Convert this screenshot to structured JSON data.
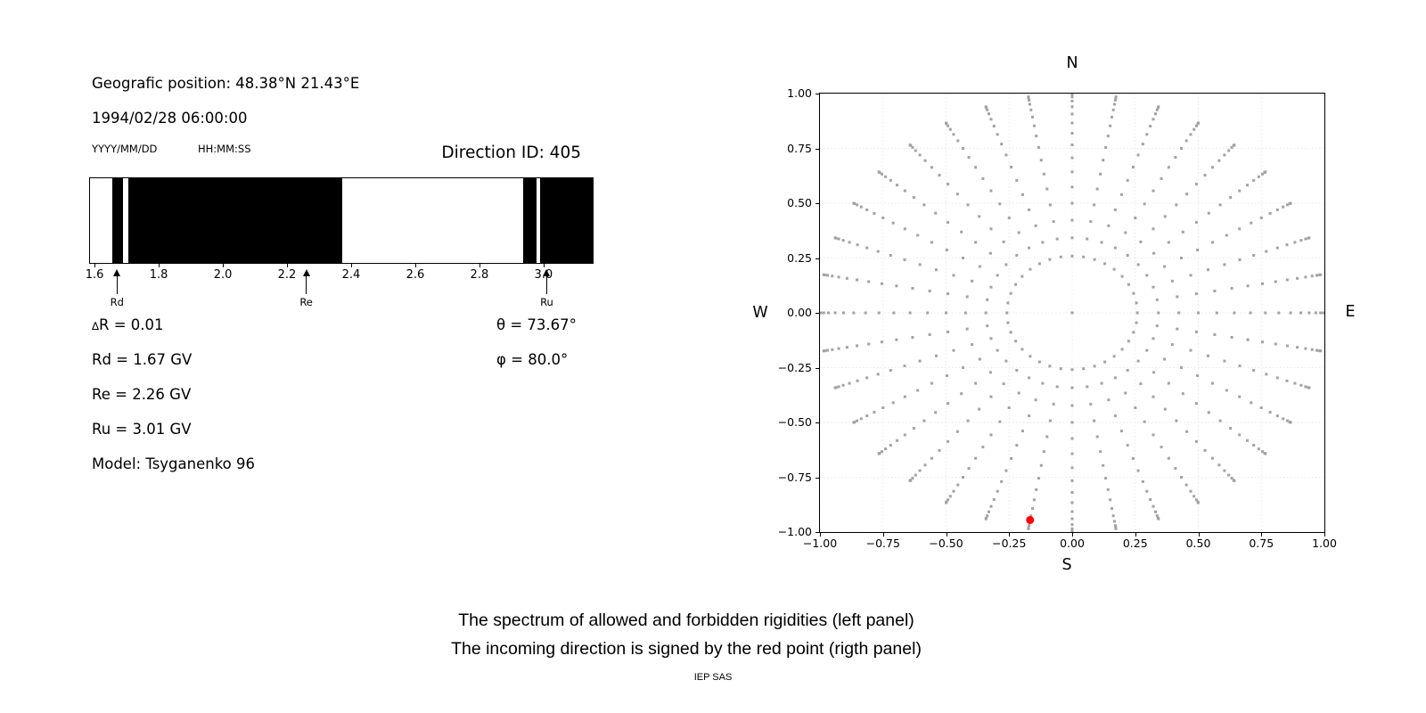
{
  "left_panel": {
    "position_line": "Geografic position: 48.38°N 21.43°E",
    "datetime_line": "1994/02/28 06:00:00",
    "date_format_label": "YYYY/MM/DD",
    "time_format_label": "HH:MM:SS",
    "direction_id_line": "Direction ID: 405",
    "delta_symbol": "∆",
    "delta_rest": "R = 0.01",
    "rd_line": "Rd = 1.67 GV",
    "re_line": "Re = 2.26 GV",
    "ru_line": "Ru = 3.01 GV",
    "model_line": "Model: Tsyganenko 96",
    "theta_line": "θ = 73.67°",
    "phi_line": "φ = 80.0°"
  },
  "chart_data": [
    {
      "type": "bar",
      "title": "",
      "xlabel": "",
      "ylabel": "",
      "description": "Spectrum of allowed (white) and forbidden (black) rigidity bands in GV",
      "xlim": [
        1.583,
        3.156
      ],
      "xticks": [
        1.6,
        1.8,
        2.0,
        2.2,
        2.4,
        2.6,
        2.8,
        3.0
      ],
      "xtick_labels": [
        "1.6",
        "1.8",
        "2.0",
        "2.2",
        "2.4",
        "2.6",
        "2.8",
        "3.0"
      ],
      "black_segments": [
        [
          1.652,
          1.686
        ],
        [
          1.702,
          2.372
        ],
        [
          2.939,
          2.981
        ],
        [
          2.992,
          3.156
        ]
      ],
      "white_segments": [
        [
          1.583,
          1.652
        ],
        [
          1.686,
          1.702
        ],
        [
          2.372,
          2.939
        ],
        [
          2.981,
          2.992
        ]
      ],
      "arrows": [
        {
          "label": "Rd",
          "value": 1.67
        },
        {
          "label": "Re",
          "value": 2.26
        },
        {
          "label": "Ru",
          "value": 3.01
        }
      ],
      "colors": {
        "band": "#000000",
        "background": "#ffffff"
      }
    },
    {
      "type": "scatter",
      "title": "",
      "compass": {
        "north": "N",
        "south": "S",
        "west": "W",
        "east": "E"
      },
      "xlim": [
        -1.0,
        1.0
      ],
      "ylim": [
        -1.0,
        1.0
      ],
      "xticks": [
        -1.0,
        -0.75,
        -0.5,
        -0.25,
        0.0,
        0.25,
        0.5,
        0.75,
        1.0
      ],
      "yticks": [
        1.0,
        0.75,
        0.5,
        0.25,
        0.0,
        -0.25,
        -0.5,
        -0.75,
        -1.0
      ],
      "xtick_labels": [
        "−1.00",
        "−0.75",
        "−0.50",
        "−0.25",
        "0.00",
        "0.25",
        "0.50",
        "0.75",
        "1.00"
      ],
      "ytick_labels": [
        "1.00",
        "0.75",
        "0.50",
        "0.25",
        "0.00",
        "−0.25",
        "−0.50",
        "−0.75",
        "−1.00"
      ],
      "grid": true,
      "grid_color": "#e8e8e8",
      "dot_color": "#a2a2a2",
      "dot_size_px": 3,
      "azimuth_step_deg": 10,
      "zenith_angles_deg": [
        0,
        15,
        20,
        25,
        30,
        35,
        40,
        45,
        50,
        55,
        60,
        65,
        70,
        75,
        80,
        85,
        90
      ],
      "radius_rule": "r = sin(zenith_angle)",
      "red_point": {
        "x": -0.167,
        "y": -0.945,
        "theta_deg": 73.67,
        "phi_deg": 80.0,
        "color": "#ff0000"
      }
    }
  ],
  "caption": {
    "line1": "The spectrum of allowed and forbidden rigidities (left panel)",
    "line2": "The incoming direction is signed by the red point (rigth panel)",
    "credit": "IEP SAS"
  }
}
